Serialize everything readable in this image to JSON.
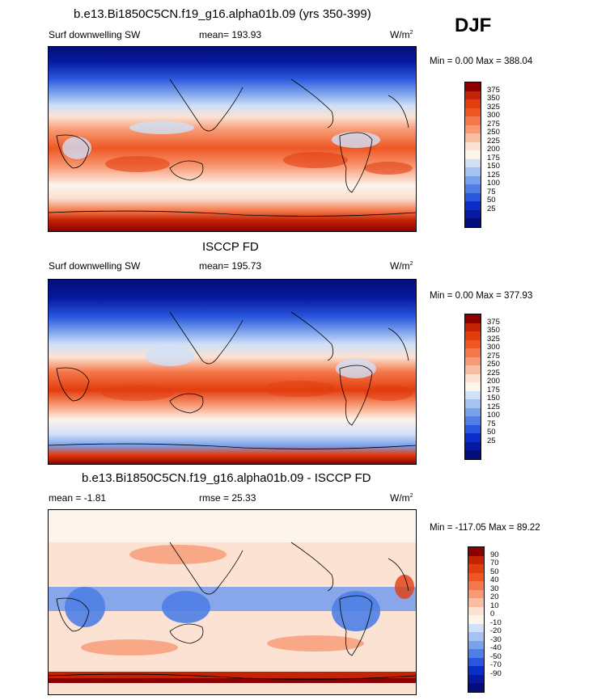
{
  "season": "DJF",
  "panels": [
    {
      "id": "model",
      "title": "b.e13.Bi1850C5CN.f19_g16.alpha01b.09 (yrs 350-399)",
      "left_label": "Surf downwelling SW",
      "center_label": "mean= 193.93",
      "units": "W/m",
      "units_sup": "2",
      "range_text": "Min =   0.00 Max = 388.04"
    },
    {
      "id": "obs",
      "title": "ISCCP FD",
      "left_label": "Surf downwelling SW",
      "center_label": "mean= 195.73",
      "units": "W/m",
      "units_sup": "2",
      "range_text": "Min =   0.00 Max = 377.93"
    },
    {
      "id": "diff",
      "title": "b.e13.Bi1850C5CN.f19_g16.alpha01b.09 - ISCCP FD",
      "left_label": "mean =  -1.81",
      "center_label": "rmse =  25.33",
      "units": "W/m",
      "units_sup": "2",
      "range_text": "Min = -117.05 Max =  89.22"
    }
  ],
  "colorbars": {
    "absolute": {
      "labels": [
        "375",
        "350",
        "325",
        "300",
        "275",
        "250",
        "225",
        "200",
        "175",
        "150",
        "125",
        "100",
        "75",
        "50",
        "25"
      ],
      "colors": [
        "#8b0000",
        "#c42406",
        "#e23d0f",
        "#ee5724",
        "#f5784a",
        "#f89a74",
        "#f9bea2",
        "#fbe2d2",
        "#fdf4ec",
        "#cfe0f7",
        "#a6c2f2",
        "#7aa1ec",
        "#4f7fe6",
        "#2856dc",
        "#0a2ec8",
        "#061aa0",
        "#040e7a"
      ]
    },
    "difference": {
      "labels": [
        "90",
        "70",
        "50",
        "40",
        "30",
        "20",
        "10",
        "0",
        "-10",
        "-20",
        "-30",
        "-40",
        "-50",
        "-70",
        "-90"
      ],
      "colors": [
        "#8b0000",
        "#c42406",
        "#e23d0f",
        "#ee5724",
        "#f5784a",
        "#f89a74",
        "#f9bea2",
        "#fbe2d2",
        "#fdf4ec",
        "#cfe0f7",
        "#a6c2f2",
        "#7aa1ec",
        "#4f7fe6",
        "#2856dc",
        "#0a2ec8",
        "#061aa0",
        "#040e7a"
      ]
    }
  }
}
